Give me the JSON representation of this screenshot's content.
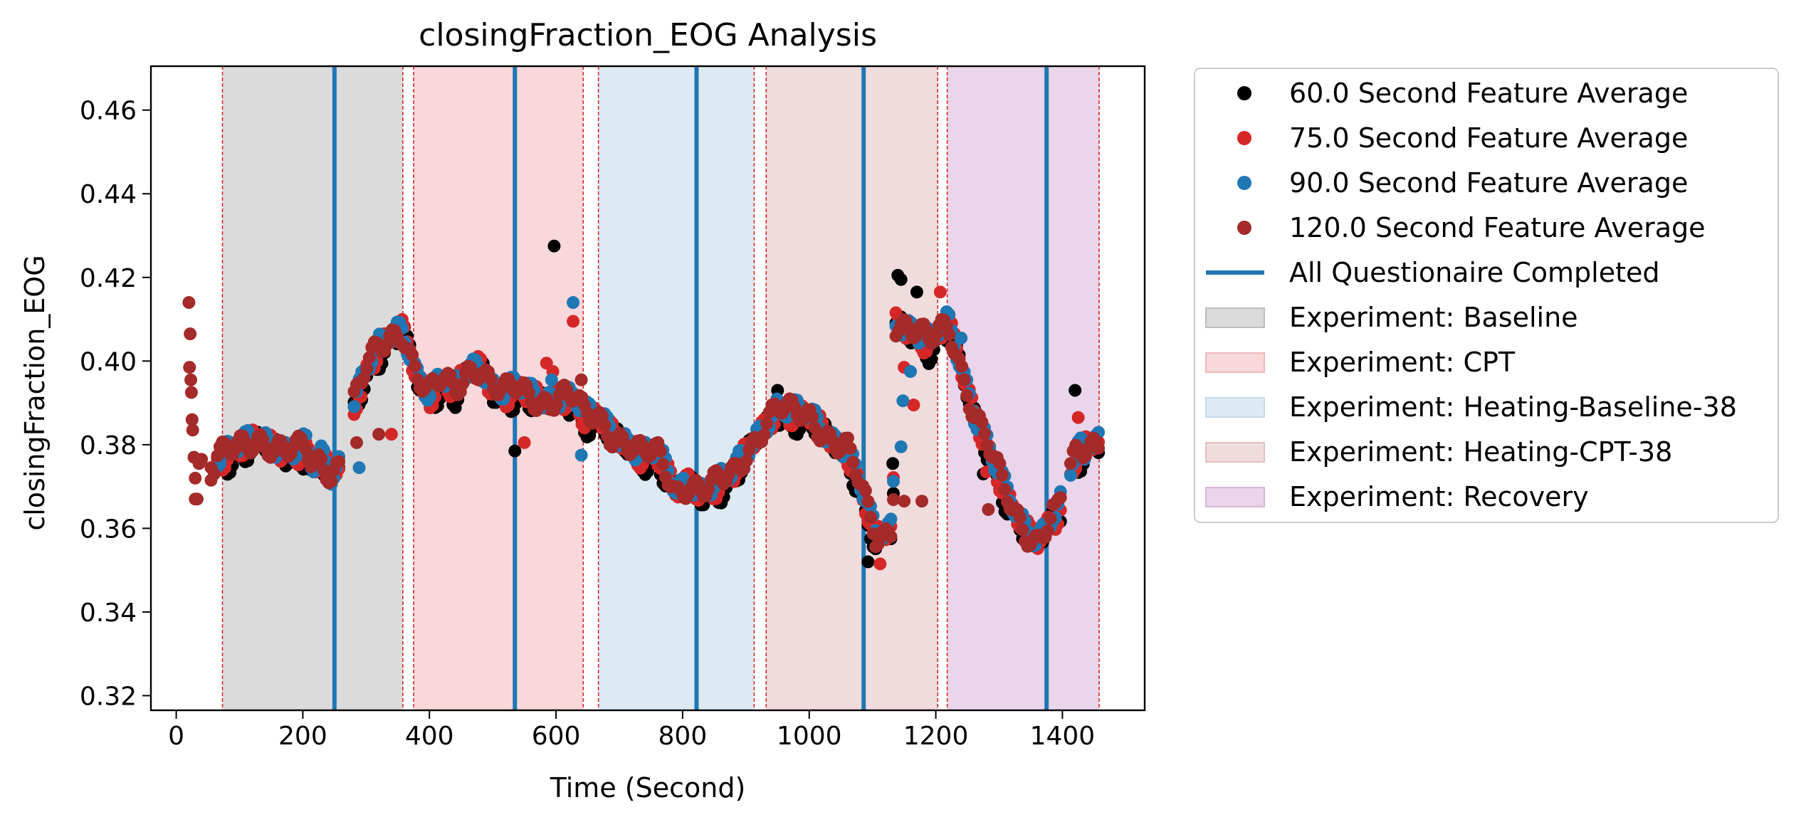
{
  "chart_data": {
    "type": "scatter",
    "title": "closingFraction_EOG Analysis",
    "xlabel": "Time (Second)",
    "ylabel": "closingFraction_EOG",
    "xlim": [
      -40,
      1530
    ],
    "ylim": [
      0.3165,
      0.4705
    ],
    "xticks": [
      0,
      200,
      400,
      600,
      800,
      1000,
      1200,
      1400
    ],
    "yticks": [
      0.32,
      0.34,
      0.36,
      0.38,
      0.4,
      0.42,
      0.44,
      0.46
    ],
    "xtick_labels": [
      "0",
      "200",
      "400",
      "600",
      "800",
      "1000",
      "1200",
      "1400"
    ],
    "ytick_labels": [
      "0.32",
      "0.34",
      "0.36",
      "0.38",
      "0.40",
      "0.42",
      "0.44",
      "0.46"
    ],
    "grid": false,
    "legend_position": "outside right, top",
    "regions": [
      {
        "name": "Experiment: Baseline",
        "start": 73,
        "end": 358,
        "color": "#bdbdbd"
      },
      {
        "name": "Experiment: CPT",
        "start": 375,
        "end": 643,
        "color": "#f2b8bb"
      },
      {
        "name": "Experiment: Heating-Baseline-38",
        "start": 667,
        "end": 913,
        "color": "#c3d9ea"
      },
      {
        "name": "Experiment: Heating-CPT-38",
        "start": 932,
        "end": 1203,
        "color": "#e3c0bf"
      },
      {
        "name": "Experiment: Recovery",
        "start": 1218,
        "end": 1458,
        "color": "#d9b3d9"
      }
    ],
    "boundary_lines": [
      73,
      358,
      375,
      643,
      667,
      913,
      932,
      1203,
      1218,
      1458
    ],
    "boundary_color": "#d62728",
    "questionnaire_label": "All Questionaire Completed",
    "questionnaire_color": "#1f77b4",
    "questionnaire_lines": [
      250,
      535,
      822,
      1086,
      1375
    ],
    "series": [
      {
        "name": "60.0 Second Feature Average",
        "color": "#000000",
        "offset": -0.0012,
        "extra_points": [
          [
            597,
            0.4275
          ],
          [
            1140,
            0.4205
          ],
          [
            1145,
            0.4195
          ],
          [
            1093,
            0.352
          ],
          [
            1132,
            0.3755
          ],
          [
            535,
            0.3785
          ],
          [
            1420,
            0.393
          ],
          [
            1275,
            0.373
          ],
          [
            950,
            0.393
          ],
          [
            1170,
            0.4165
          ]
        ]
      },
      {
        "name": "75.0 Second Feature Average",
        "color": "#d62728",
        "offset": 0.0,
        "extra_points": [
          [
            292,
            0.3915
          ],
          [
            340,
            0.3825
          ],
          [
            585,
            0.3995
          ],
          [
            595,
            0.3975
          ],
          [
            627,
            0.4095
          ],
          [
            1112,
            0.3515
          ],
          [
            1150,
            0.3985
          ],
          [
            1165,
            0.3895
          ],
          [
            1207,
            0.4165
          ],
          [
            1280,
            0.3735
          ],
          [
            1425,
            0.3865
          ],
          [
            1150,
            0.4095
          ],
          [
            550,
            0.3805
          ]
        ]
      },
      {
        "name": "90.0 Second Feature Average",
        "color": "#1f77b4",
        "offset": 0.0008,
        "extra_points": [
          [
            289,
            0.3745
          ],
          [
            593,
            0.3955
          ],
          [
            627,
            0.414
          ],
          [
            640,
            0.3775
          ],
          [
            1145,
            0.3795
          ],
          [
            1148,
            0.3905
          ],
          [
            1160,
            0.3975
          ],
          [
            1240,
            0.4055
          ],
          [
            1435,
            0.3765
          ]
        ]
      },
      {
        "name": "120.0 Second Feature Average",
        "color": "#a52a2a",
        "offset": 0.0004,
        "extra_points": [
          [
            20,
            0.414
          ],
          [
            22,
            0.4065
          ],
          [
            21,
            0.3985
          ],
          [
            23,
            0.3955
          ],
          [
            24,
            0.3925
          ],
          [
            25,
            0.386
          ],
          [
            26,
            0.3835
          ],
          [
            28,
            0.377
          ],
          [
            30,
            0.372
          ],
          [
            30,
            0.367
          ],
          [
            33,
            0.367
          ],
          [
            36,
            0.3755
          ],
          [
            40,
            0.3765
          ],
          [
            55,
            0.3745
          ],
          [
            55,
            0.3715
          ],
          [
            60,
            0.373
          ],
          [
            285,
            0.3805
          ],
          [
            320,
            0.3825
          ],
          [
            640,
            0.3955
          ],
          [
            1150,
            0.3665
          ],
          [
            1178,
            0.3665
          ],
          [
            1283,
            0.3645
          ]
        ]
      }
    ],
    "base_curve": [
      [
        65,
        0.377
      ],
      [
        90,
        0.378
      ],
      [
        110,
        0.379
      ],
      [
        130,
        0.381
      ],
      [
        150,
        0.38
      ],
      [
        170,
        0.379
      ],
      [
        190,
        0.378
      ],
      [
        205,
        0.379
      ],
      [
        215,
        0.373
      ],
      [
        230,
        0.376
      ],
      [
        245,
        0.372
      ],
      [
        258,
        0.376
      ],
      [
        280,
        0.39
      ],
      [
        300,
        0.398
      ],
      [
        320,
        0.402
      ],
      [
        340,
        0.405
      ],
      [
        358,
        0.407
      ],
      [
        380,
        0.397
      ],
      [
        400,
        0.392
      ],
      [
        420,
        0.395
      ],
      [
        440,
        0.392
      ],
      [
        460,
        0.397
      ],
      [
        480,
        0.399
      ],
      [
        500,
        0.394
      ],
      [
        520,
        0.392
      ],
      [
        540,
        0.393
      ],
      [
        555,
        0.391
      ],
      [
        580,
        0.39
      ],
      [
        610,
        0.392
      ],
      [
        630,
        0.391
      ],
      [
        645,
        0.386
      ],
      [
        665,
        0.386
      ],
      [
        690,
        0.382
      ],
      [
        710,
        0.381
      ],
      [
        730,
        0.378
      ],
      [
        760,
        0.377
      ],
      [
        790,
        0.368
      ],
      [
        810,
        0.371
      ],
      [
        830,
        0.369
      ],
      [
        850,
        0.37
      ],
      [
        880,
        0.372
      ],
      [
        910,
        0.38
      ],
      [
        930,
        0.385
      ],
      [
        950,
        0.389
      ],
      [
        970,
        0.387
      ],
      [
        1000,
        0.386
      ],
      [
        1030,
        0.382
      ],
      [
        1060,
        0.379
      ],
      [
        1080,
        0.37
      ],
      [
        1095,
        0.362
      ],
      [
        1105,
        0.357
      ],
      [
        1120,
        0.358
      ],
      [
        1132,
        0.36
      ],
      [
        1137,
        0.409
      ],
      [
        1160,
        0.408
      ],
      [
        1190,
        0.404
      ],
      [
        1220,
        0.408
      ],
      [
        1240,
        0.398
      ],
      [
        1260,
        0.388
      ],
      [
        1280,
        0.381
      ],
      [
        1300,
        0.372
      ],
      [
        1320,
        0.364
      ],
      [
        1340,
        0.359
      ],
      [
        1360,
        0.357
      ],
      [
        1375,
        0.361
      ],
      [
        1385,
        0.364
      ],
      [
        1390,
        0.363
      ],
      [
        1410,
        0.372
      ],
      [
        1420,
        0.376
      ],
      [
        1440,
        0.379
      ],
      [
        1455,
        0.38
      ]
    ]
  }
}
